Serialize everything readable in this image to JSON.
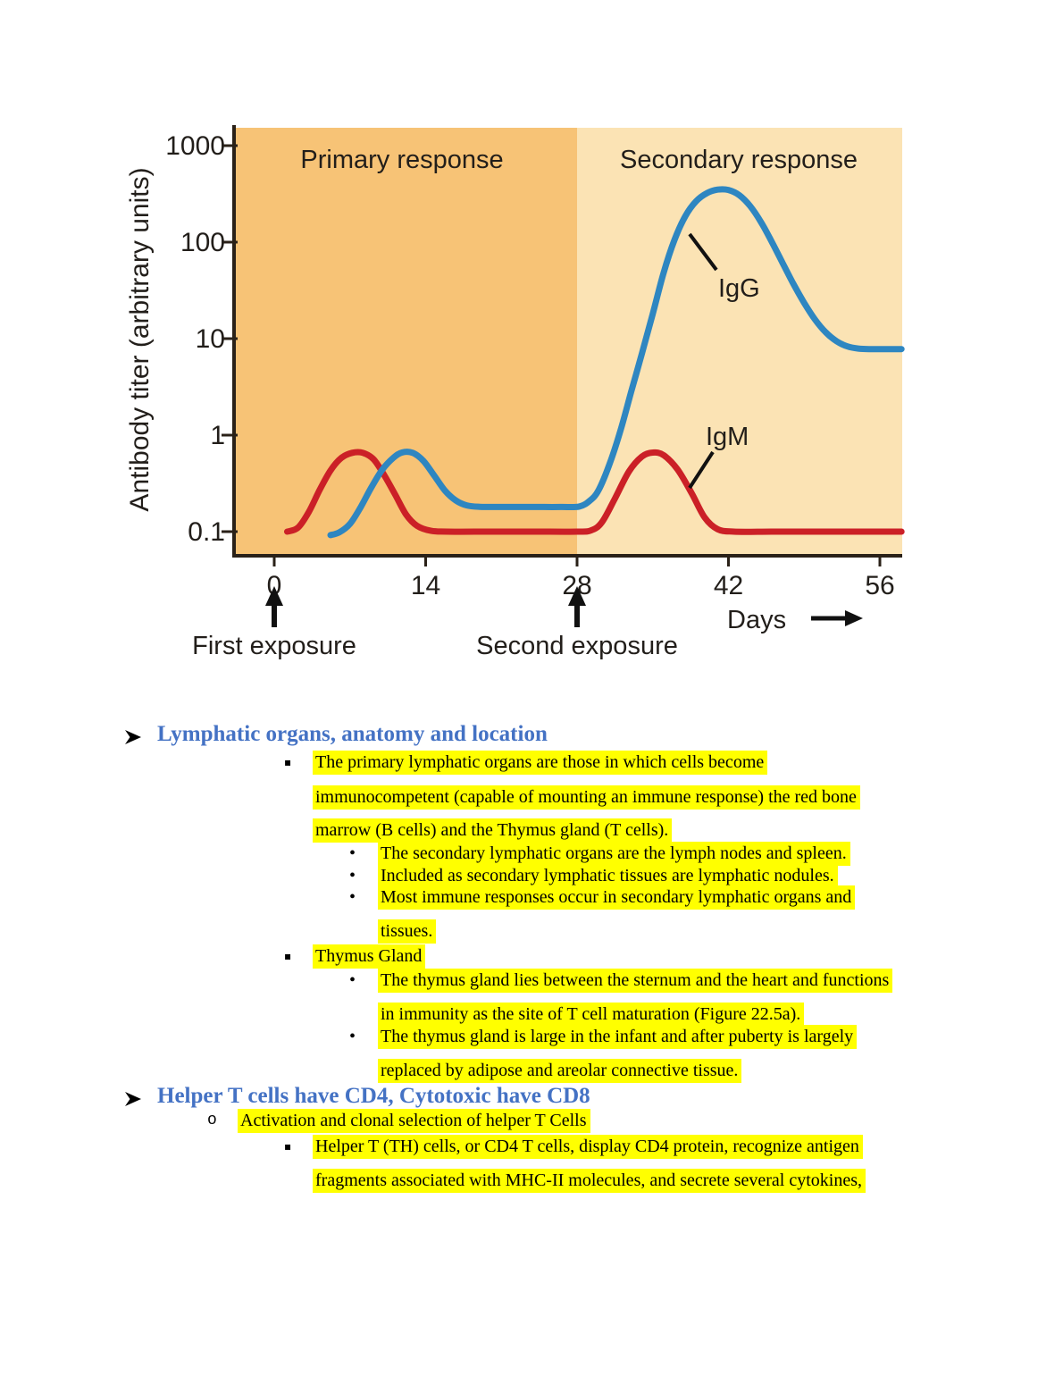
{
  "chart_data": {
    "type": "line",
    "region_labels": [
      "Primary response",
      "Secondary response"
    ],
    "region_split_day": 28,
    "xlabel": "Days",
    "ylabel": "Antibody titer (arbitrary units)",
    "x_ticks": [
      0,
      14,
      28,
      42,
      56
    ],
    "y_ticks": [
      1000,
      100,
      10,
      1,
      0.1
    ],
    "y_scale": "log",
    "x_range_days": [
      -3.7,
      58
    ],
    "y_range": [
      0.06,
      1600
    ],
    "exposure_markers": [
      {
        "day": 0,
        "label": "First exposure"
      },
      {
        "day": 28,
        "label": "Second exposure"
      }
    ],
    "series": [
      {
        "id": "igm",
        "name": "IgM",
        "color": "#CB2027",
        "points": [
          [
            1.2,
            0.1
          ],
          [
            2.2,
            0.11
          ],
          [
            3.2,
            0.16
          ],
          [
            4.2,
            0.27
          ],
          [
            5.2,
            0.43
          ],
          [
            6.2,
            0.58
          ],
          [
            7.2,
            0.655
          ],
          [
            8.2,
            0.655
          ],
          [
            9.2,
            0.56
          ],
          [
            10.2,
            0.38
          ],
          [
            11.2,
            0.24
          ],
          [
            12.2,
            0.15
          ],
          [
            13.2,
            0.115
          ],
          [
            14.5,
            0.102
          ],
          [
            16,
            0.1
          ],
          [
            20,
            0.1
          ],
          [
            24,
            0.1
          ],
          [
            28,
            0.1
          ],
          [
            29.3,
            0.103
          ],
          [
            30.3,
            0.125
          ],
          [
            31.5,
            0.22
          ],
          [
            32.8,
            0.42
          ],
          [
            34,
            0.6
          ],
          [
            35,
            0.66
          ],
          [
            36,
            0.62
          ],
          [
            37.3,
            0.44
          ],
          [
            38.6,
            0.25
          ],
          [
            39.8,
            0.14
          ],
          [
            41,
            0.106
          ],
          [
            42.5,
            0.1
          ],
          [
            46,
            0.1
          ],
          [
            50,
            0.1
          ],
          [
            54,
            0.1
          ],
          [
            58,
            0.1
          ]
        ]
      },
      {
        "id": "igg",
        "name": "IgG",
        "color": "#2E86C1",
        "points": [
          [
            5.2,
            0.092
          ],
          [
            6,
            0.098
          ],
          [
            7,
            0.12
          ],
          [
            8,
            0.18
          ],
          [
            9,
            0.29
          ],
          [
            10,
            0.44
          ],
          [
            11,
            0.58
          ],
          [
            11.8,
            0.66
          ],
          [
            12.8,
            0.655
          ],
          [
            13.8,
            0.54
          ],
          [
            14.8,
            0.38
          ],
          [
            15.8,
            0.265
          ],
          [
            16.8,
            0.21
          ],
          [
            17.8,
            0.187
          ],
          [
            19,
            0.181
          ],
          [
            21,
            0.18
          ],
          [
            24,
            0.18
          ],
          [
            26.5,
            0.18
          ],
          [
            28.2,
            0.182
          ],
          [
            29.2,
            0.21
          ],
          [
            30,
            0.27
          ],
          [
            31,
            0.5
          ],
          [
            32,
            1.1
          ],
          [
            33,
            2.8
          ],
          [
            34,
            7
          ],
          [
            35,
            18
          ],
          [
            36,
            48
          ],
          [
            37,
            105
          ],
          [
            38,
            185
          ],
          [
            39,
            265
          ],
          [
            40,
            322
          ],
          [
            41,
            350
          ],
          [
            42,
            347
          ],
          [
            43,
            307
          ],
          [
            44,
            237
          ],
          [
            45,
            162
          ],
          [
            46,
            101
          ],
          [
            47,
            61
          ],
          [
            48,
            37
          ],
          [
            49,
            23.5
          ],
          [
            50,
            15.8
          ],
          [
            51,
            11.6
          ],
          [
            52,
            9.4
          ],
          [
            53,
            8.3
          ],
          [
            54,
            7.9
          ],
          [
            55,
            7.8
          ],
          [
            56.5,
            7.8
          ],
          [
            58,
            7.8
          ]
        ]
      }
    ],
    "colors": {
      "primary_bg": "#F7C376",
      "secondary_bg": "#FBE3B4",
      "axis": "#2A2118",
      "text": "#221E1A"
    }
  },
  "doc": {
    "heading1": "Lymphatic organs, anatomy and location",
    "heading2": "Helper T cells have CD4, Cytotoxic have CD8",
    "bullets": {
      "square": "▪",
      "dot": "•",
      "o": "o"
    },
    "lines": [
      "The primary lymphatic organs are those in which cells become",
      "immunocompetent (capable of mounting an immune response) the red bone",
      "marrow (B cells) and the Thymus gland (T cells).",
      "The secondary lymphatic organs are the lymph nodes and spleen.",
      "Included as secondary lymphatic tissues are lymphatic nodules.",
      "Most immune responses occur in secondary lymphatic organs and",
      "tissues.",
      "Thymus Gland",
      "The thymus gland lies between the sternum and the heart and functions",
      "in immunity as the site of T cell maturation (Figure 22.5a).",
      "The thymus gland is large in the infant and after puberty is largely",
      "replaced by adipose and areolar connective tissue.",
      "Activation and clonal selection of helper T Cells",
      "Helper T (TH) cells, or CD4 T cells, display CD4 protein, recognize antigen",
      "fragments associated with MHC-II molecules, and secrete several cytokines,"
    ]
  }
}
